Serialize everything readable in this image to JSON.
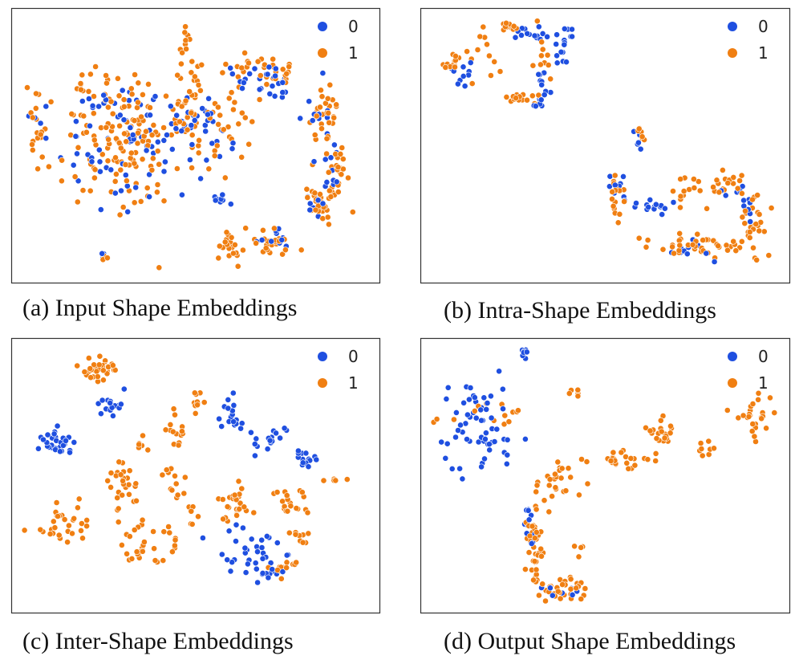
{
  "colors": {
    "0": "#1f4fe0",
    "1": "#f07f12"
  },
  "chart_data": [
    {
      "type": "scatter",
      "caption": "(a) Input Shape Embeddings",
      "legend": [
        "0",
        "1"
      ],
      "legend_position": "top-right",
      "grid": false,
      "xlim": [
        0,
        1
      ],
      "ylim": [
        0,
        1
      ],
      "clusters": [
        {
          "series": "1",
          "cx": 0.05,
          "cy": 0.56,
          "sx": 0.01,
          "sy": 0.07,
          "n": 16
        },
        {
          "series": "0",
          "cx": 0.06,
          "cy": 0.58,
          "sx": 0.01,
          "sy": 0.06,
          "n": 5
        },
        {
          "series": "1",
          "cx": 0.28,
          "cy": 0.52,
          "sx": 0.09,
          "sy": 0.14,
          "n": 150
        },
        {
          "series": "0",
          "cx": 0.3,
          "cy": 0.52,
          "sx": 0.09,
          "sy": 0.12,
          "n": 70
        },
        {
          "series": "1",
          "cx": 0.51,
          "cy": 0.62,
          "sx": 0.07,
          "sy": 0.12,
          "n": 70
        },
        {
          "series": "0",
          "cx": 0.48,
          "cy": 0.58,
          "sx": 0.06,
          "sy": 0.08,
          "n": 35
        },
        {
          "series": "1",
          "cx": 0.47,
          "cy": 0.91,
          "sx": 0.008,
          "sy": 0.04,
          "n": 10
        },
        {
          "series": "1",
          "cx": 0.64,
          "cy": 0.81,
          "sx": 0.05,
          "sy": 0.025,
          "n": 20
        },
        {
          "series": "0",
          "cx": 0.64,
          "cy": 0.76,
          "sx": 0.05,
          "sy": 0.03,
          "n": 12
        },
        {
          "series": "0",
          "cx": 0.73,
          "cy": 0.75,
          "sx": 0.03,
          "sy": 0.03,
          "n": 15
        },
        {
          "series": "1",
          "cx": 0.75,
          "cy": 0.77,
          "sx": 0.03,
          "sy": 0.02,
          "n": 12
        },
        {
          "series": "1",
          "cx": 0.86,
          "cy": 0.63,
          "sx": 0.025,
          "sy": 0.07,
          "n": 30
        },
        {
          "series": "0",
          "cx": 0.84,
          "cy": 0.62,
          "sx": 0.02,
          "sy": 0.07,
          "n": 12
        },
        {
          "series": "1",
          "cx": 0.9,
          "cy": 0.44,
          "sx": 0.015,
          "sy": 0.06,
          "n": 25
        },
        {
          "series": "0",
          "cx": 0.88,
          "cy": 0.4,
          "sx": 0.015,
          "sy": 0.05,
          "n": 10
        },
        {
          "series": "1",
          "cx": 0.85,
          "cy": 0.28,
          "sx": 0.02,
          "sy": 0.035,
          "n": 28
        },
        {
          "series": "0",
          "cx": 0.84,
          "cy": 0.29,
          "sx": 0.015,
          "sy": 0.03,
          "n": 8
        },
        {
          "series": "0",
          "cx": 0.57,
          "cy": 0.29,
          "sx": 0.015,
          "sy": 0.015,
          "n": 8
        },
        {
          "series": "1",
          "cx": 0.6,
          "cy": 0.11,
          "sx": 0.022,
          "sy": 0.03,
          "n": 22
        },
        {
          "series": "1",
          "cx": 0.72,
          "cy": 0.12,
          "sx": 0.025,
          "sy": 0.025,
          "n": 22
        },
        {
          "series": "0",
          "cx": 0.71,
          "cy": 0.15,
          "sx": 0.025,
          "sy": 0.02,
          "n": 10
        },
        {
          "series": "1",
          "cx": 0.25,
          "cy": 0.07,
          "sx": 0.008,
          "sy": 0.01,
          "n": 3
        },
        {
          "series": "0",
          "cx": 0.24,
          "cy": 0.08,
          "sx": 0.008,
          "sy": 0.01,
          "n": 3
        }
      ]
    },
    {
      "type": "scatter",
      "caption": "(b) Intra-Shape Embeddings",
      "legend": [
        "0",
        "1"
      ],
      "legend_position": "top-right",
      "grid": false,
      "xlim": [
        0,
        1
      ],
      "ylim": [
        0,
        1
      ],
      "clusters": [
        {
          "series": "1",
          "cx": 0.06,
          "cy": 0.82,
          "sx": 0.015,
          "sy": 0.02,
          "n": 14
        },
        {
          "series": "0",
          "cx": 0.11,
          "cy": 0.79,
          "sx": 0.03,
          "sy": 0.03,
          "n": 10
        },
        {
          "series": "1",
          "cx": 0.16,
          "cy": 0.86,
          "sx": 0.02,
          "sy": 0.04,
          "n": 12
        },
        {
          "series": "1",
          "cx": 0.23,
          "cy": 0.96,
          "sx": 0.02,
          "sy": 0.01,
          "n": 12
        },
        {
          "series": "0",
          "cx": 0.29,
          "cy": 0.93,
          "sx": 0.025,
          "sy": 0.02,
          "n": 14
        },
        {
          "series": "0",
          "cx": 0.38,
          "cy": 0.88,
          "sx": 0.015,
          "sy": 0.05,
          "n": 16
        },
        {
          "series": "1",
          "cx": 0.33,
          "cy": 0.84,
          "sx": 0.015,
          "sy": 0.05,
          "n": 10
        },
        {
          "series": "0",
          "cx": 0.32,
          "cy": 0.73,
          "sx": 0.02,
          "sy": 0.03,
          "n": 10
        },
        {
          "series": "1",
          "cx": 0.26,
          "cy": 0.68,
          "sx": 0.03,
          "sy": 0.015,
          "n": 16
        },
        {
          "series": "0",
          "cx": 0.31,
          "cy": 0.66,
          "sx": 0.015,
          "sy": 0.01,
          "n": 6
        },
        {
          "series": "1",
          "cx": 0.6,
          "cy": 0.54,
          "sx": 0.006,
          "sy": 0.02,
          "n": 7
        },
        {
          "series": "0",
          "cx": 0.59,
          "cy": 0.52,
          "sx": 0.006,
          "sy": 0.02,
          "n": 5
        },
        {
          "series": "1",
          "cx": 0.53,
          "cy": 0.3,
          "sx": 0.01,
          "sy": 0.05,
          "n": 18
        },
        {
          "series": "0",
          "cx": 0.53,
          "cy": 0.35,
          "sx": 0.015,
          "sy": 0.03,
          "n": 10
        },
        {
          "series": "0",
          "cx": 0.63,
          "cy": 0.27,
          "sx": 0.03,
          "sy": 0.02,
          "n": 14
        },
        {
          "series": "1",
          "cx": 0.73,
          "cy": 0.31,
          "sx": 0.03,
          "sy": 0.04,
          "n": 14
        },
        {
          "series": "1",
          "cx": 0.84,
          "cy": 0.36,
          "sx": 0.03,
          "sy": 0.03,
          "n": 16
        },
        {
          "series": "0",
          "cx": 0.84,
          "cy": 0.32,
          "sx": 0.03,
          "sy": 0.02,
          "n": 6
        },
        {
          "series": "1",
          "cx": 0.92,
          "cy": 0.2,
          "sx": 0.02,
          "sy": 0.06,
          "n": 30
        },
        {
          "series": "0",
          "cx": 0.91,
          "cy": 0.28,
          "sx": 0.015,
          "sy": 0.04,
          "n": 6
        },
        {
          "series": "1",
          "cx": 0.73,
          "cy": 0.12,
          "sx": 0.05,
          "sy": 0.025,
          "n": 28
        },
        {
          "series": "0",
          "cx": 0.75,
          "cy": 0.1,
          "sx": 0.03,
          "sy": 0.02,
          "n": 10
        },
        {
          "series": "1",
          "cx": 0.84,
          "cy": 0.11,
          "sx": 0.03,
          "sy": 0.015,
          "n": 10
        }
      ]
    },
    {
      "type": "scatter",
      "caption": "(c) Inter-Shape Embeddings",
      "legend": [
        "0",
        "1"
      ],
      "legend_position": "top-right",
      "grid": false,
      "xlim": [
        0,
        1
      ],
      "ylim": [
        0,
        1
      ],
      "clusters": [
        {
          "series": "1",
          "cx": 0.23,
          "cy": 0.91,
          "sx": 0.03,
          "sy": 0.025,
          "n": 32
        },
        {
          "series": "0",
          "cx": 0.26,
          "cy": 0.77,
          "sx": 0.02,
          "sy": 0.025,
          "n": 18
        },
        {
          "series": "0",
          "cx": 0.1,
          "cy": 0.62,
          "sx": 0.025,
          "sy": 0.04,
          "n": 30
        },
        {
          "series": "1",
          "cx": 0.35,
          "cy": 0.62,
          "sx": 0.015,
          "sy": 0.02,
          "n": 6
        },
        {
          "series": "1",
          "cx": 0.44,
          "cy": 0.67,
          "sx": 0.015,
          "sy": 0.04,
          "n": 14
        },
        {
          "series": "1",
          "cx": 0.51,
          "cy": 0.78,
          "sx": 0.015,
          "sy": 0.02,
          "n": 10
        },
        {
          "series": "0",
          "cx": 0.61,
          "cy": 0.74,
          "sx": 0.02,
          "sy": 0.03,
          "n": 18
        },
        {
          "series": "0",
          "cx": 0.7,
          "cy": 0.64,
          "sx": 0.03,
          "sy": 0.025,
          "n": 16
        },
        {
          "series": "0",
          "cx": 0.8,
          "cy": 0.57,
          "sx": 0.02,
          "sy": 0.02,
          "n": 14
        },
        {
          "series": "1",
          "cx": 0.9,
          "cy": 0.48,
          "sx": 0.015,
          "sy": 0.005,
          "n": 5
        },
        {
          "series": "1",
          "cx": 0.29,
          "cy": 0.47,
          "sx": 0.025,
          "sy": 0.04,
          "n": 26
        },
        {
          "series": "1",
          "cx": 0.44,
          "cy": 0.47,
          "sx": 0.015,
          "sy": 0.04,
          "n": 12
        },
        {
          "series": "1",
          "cx": 0.12,
          "cy": 0.31,
          "sx": 0.04,
          "sy": 0.04,
          "n": 30
        },
        {
          "series": "1",
          "cx": 0.33,
          "cy": 0.24,
          "sx": 0.03,
          "sy": 0.04,
          "n": 22
        },
        {
          "series": "1",
          "cx": 0.43,
          "cy": 0.27,
          "sx": 0.01,
          "sy": 0.03,
          "n": 8
        },
        {
          "series": "1",
          "cx": 0.61,
          "cy": 0.39,
          "sx": 0.03,
          "sy": 0.04,
          "n": 26
        },
        {
          "series": "1",
          "cx": 0.77,
          "cy": 0.4,
          "sx": 0.025,
          "sy": 0.03,
          "n": 18
        },
        {
          "series": "0",
          "cx": 0.66,
          "cy": 0.2,
          "sx": 0.05,
          "sy": 0.06,
          "n": 42
        },
        {
          "series": "1",
          "cx": 0.75,
          "cy": 0.14,
          "sx": 0.025,
          "sy": 0.02,
          "n": 12
        },
        {
          "series": "1",
          "cx": 0.8,
          "cy": 0.26,
          "sx": 0.02,
          "sy": 0.03,
          "n": 10
        },
        {
          "series": "1",
          "cx": 0.49,
          "cy": 0.34,
          "sx": 0.01,
          "sy": 0.02,
          "n": 6
        },
        {
          "series": "1",
          "cx": 0.4,
          "cy": 0.17,
          "sx": 0.012,
          "sy": 0.008,
          "n": 4
        }
      ]
    },
    {
      "type": "scatter",
      "caption": "(d) Output Shape Embeddings",
      "legend": [
        "0",
        "1"
      ],
      "legend_position": "top-right",
      "grid": false,
      "xlim": [
        0,
        1
      ],
      "ylim": [
        0,
        1
      ],
      "clusters": [
        {
          "series": "0",
          "cx": 0.27,
          "cy": 0.97,
          "sx": 0.008,
          "sy": 0.015,
          "n": 8
        },
        {
          "series": "0",
          "cx": 0.15,
          "cy": 0.68,
          "sx": 0.06,
          "sy": 0.08,
          "n": 60
        },
        {
          "series": "1",
          "cx": 0.1,
          "cy": 0.75,
          "sx": 0.04,
          "sy": 0.03,
          "n": 6
        },
        {
          "series": "1",
          "cx": 0.22,
          "cy": 0.73,
          "sx": 0.03,
          "sy": 0.03,
          "n": 8
        },
        {
          "series": "1",
          "cx": 0.42,
          "cy": 0.82,
          "sx": 0.015,
          "sy": 0.015,
          "n": 6
        },
        {
          "series": "1",
          "cx": 0.66,
          "cy": 0.68,
          "sx": 0.02,
          "sy": 0.03,
          "n": 20
        },
        {
          "series": "1",
          "cx": 0.53,
          "cy": 0.56,
          "sx": 0.05,
          "sy": 0.015,
          "n": 26
        },
        {
          "series": "1",
          "cx": 0.38,
          "cy": 0.48,
          "sx": 0.03,
          "sy": 0.03,
          "n": 20
        },
        {
          "series": "1",
          "cx": 0.3,
          "cy": 0.28,
          "sx": 0.015,
          "sy": 0.08,
          "n": 36
        },
        {
          "series": "0",
          "cx": 0.29,
          "cy": 0.32,
          "sx": 0.01,
          "sy": 0.08,
          "n": 12
        },
        {
          "series": "1",
          "cx": 0.38,
          "cy": 0.07,
          "sx": 0.04,
          "sy": 0.02,
          "n": 32
        },
        {
          "series": "0",
          "cx": 0.38,
          "cy": 0.05,
          "sx": 0.03,
          "sy": 0.015,
          "n": 8
        },
        {
          "series": "1",
          "cx": 0.3,
          "cy": 0.12,
          "sx": 0.02,
          "sy": 0.03,
          "n": 10
        },
        {
          "series": "1",
          "cx": 0.78,
          "cy": 0.6,
          "sx": 0.02,
          "sy": 0.02,
          "n": 8
        },
        {
          "series": "1",
          "cx": 0.92,
          "cy": 0.73,
          "sx": 0.025,
          "sy": 0.04,
          "n": 26
        },
        {
          "series": "1",
          "cx": 0.43,
          "cy": 0.22,
          "sx": 0.01,
          "sy": 0.02,
          "n": 4
        }
      ]
    }
  ]
}
